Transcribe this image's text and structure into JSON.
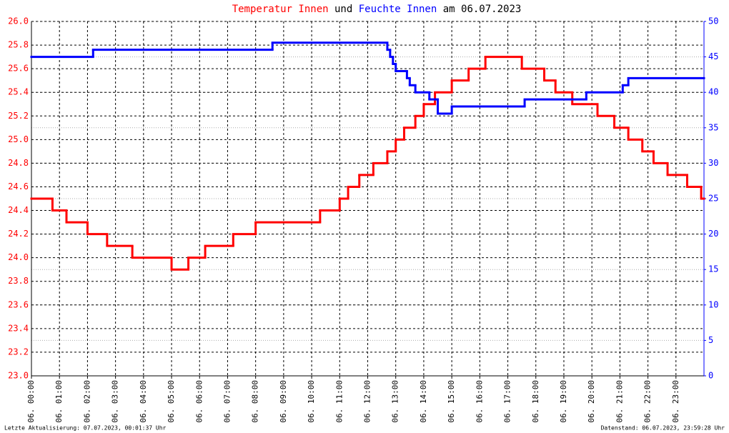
{
  "chart_data": {
    "type": "step",
    "title_parts": [
      "und",
      "am 06.07.2023"
    ],
    "xlim": [
      0,
      24
    ],
    "xticks": [
      {
        "value": 0,
        "label": "06. 00:00"
      },
      {
        "value": 1,
        "label": "06. 01:00"
      },
      {
        "value": 2,
        "label": "06. 02:00"
      },
      {
        "value": 3,
        "label": "06. 03:00"
      },
      {
        "value": 4,
        "label": "06. 04:00"
      },
      {
        "value": 5,
        "label": "06. 05:00"
      },
      {
        "value": 6,
        "label": "06. 06:00"
      },
      {
        "value": 7,
        "label": "06. 07:00"
      },
      {
        "value": 8,
        "label": "06. 08:00"
      },
      {
        "value": 9,
        "label": "06. 09:00"
      },
      {
        "value": 10,
        "label": "06. 10:00"
      },
      {
        "value": 11,
        "label": "06. 11:00"
      },
      {
        "value": 12,
        "label": "06. 12:00"
      },
      {
        "value": 13,
        "label": "06. 13:00"
      },
      {
        "value": 14,
        "label": "06. 14:00"
      },
      {
        "value": 15,
        "label": "06. 15:00"
      },
      {
        "value": 16,
        "label": "06. 16:00"
      },
      {
        "value": 17,
        "label": "06. 17:00"
      },
      {
        "value": 18,
        "label": "06. 18:00"
      },
      {
        "value": 19,
        "label": "06. 19:00"
      },
      {
        "value": 20,
        "label": "06. 20:00"
      },
      {
        "value": 21,
        "label": "06. 21:00"
      },
      {
        "value": 22,
        "label": "06. 22:00"
      },
      {
        "value": 23,
        "label": "06. 23:00"
      }
    ],
    "ylim": [
      23.0,
      26.0
    ],
    "yticks": [
      {
        "value": 23.0,
        "label": "23.0"
      },
      23.2,
      23.4,
      23.6,
      23.8,
      {
        "value": 24.0,
        "label": "24.0"
      },
      24.2,
      24.4,
      24.6,
      24.8,
      {
        "value": 25.0,
        "label": "25.0"
      },
      25.2,
      25.4,
      25.6,
      25.8,
      {
        "value": 26.0,
        "label": "26.0"
      }
    ],
    "y2lim": [
      0,
      50
    ],
    "y2ticks": [
      0,
      5,
      10,
      15,
      20,
      25,
      30,
      35,
      40,
      45,
      50
    ],
    "grid": true,
    "series": [
      {
        "name": "Temperatur Innen",
        "color": "#ff0000",
        "x": [
          0,
          0.75,
          1.25,
          2.0,
          2.7,
          3.6,
          5.0,
          5.6,
          6.2,
          7.2,
          8.0,
          10.3,
          11.0,
          11.3,
          11.7,
          12.2,
          12.7,
          13.0,
          13.3,
          13.7,
          14.0,
          14.4,
          15.0,
          15.6,
          16.2,
          17.5,
          18.3,
          18.7,
          19.3,
          20.2,
          20.8,
          21.3,
          21.8,
          22.2,
          22.7,
          23.4,
          23.9
        ],
        "values": [
          24.5,
          24.4,
          24.3,
          24.2,
          24.1,
          24.0,
          23.9,
          24.0,
          24.1,
          24.2,
          24.3,
          24.4,
          24.5,
          24.6,
          24.7,
          24.8,
          24.9,
          25.0,
          25.1,
          25.2,
          25.3,
          25.4,
          25.5,
          25.6,
          25.7,
          25.6,
          25.5,
          25.4,
          25.3,
          25.2,
          25.1,
          25.0,
          24.9,
          24.8,
          24.7,
          24.6,
          24.5
        ]
      },
      {
        "name": "Feuchte Innen",
        "color": "#0000ff",
        "axis": "y2",
        "x": [
          0,
          2.2,
          8.6,
          12.7,
          12.8,
          12.9,
          13.0,
          13.4,
          13.5,
          13.7,
          14.2,
          14.5,
          15.0,
          17.6,
          19.8,
          21.1,
          21.3
        ],
        "values": [
          45,
          46,
          47,
          46,
          45,
          44,
          43,
          42,
          41,
          40,
          39,
          37,
          38,
          39,
          40,
          41,
          42
        ]
      }
    ],
    "footer_left": "Letzte Aktualisierung: 07.07.2023, 00:01:37 Uhr",
    "footer_right": "Datenstand: 06.07.2023, 23:59:28 Uhr"
  }
}
